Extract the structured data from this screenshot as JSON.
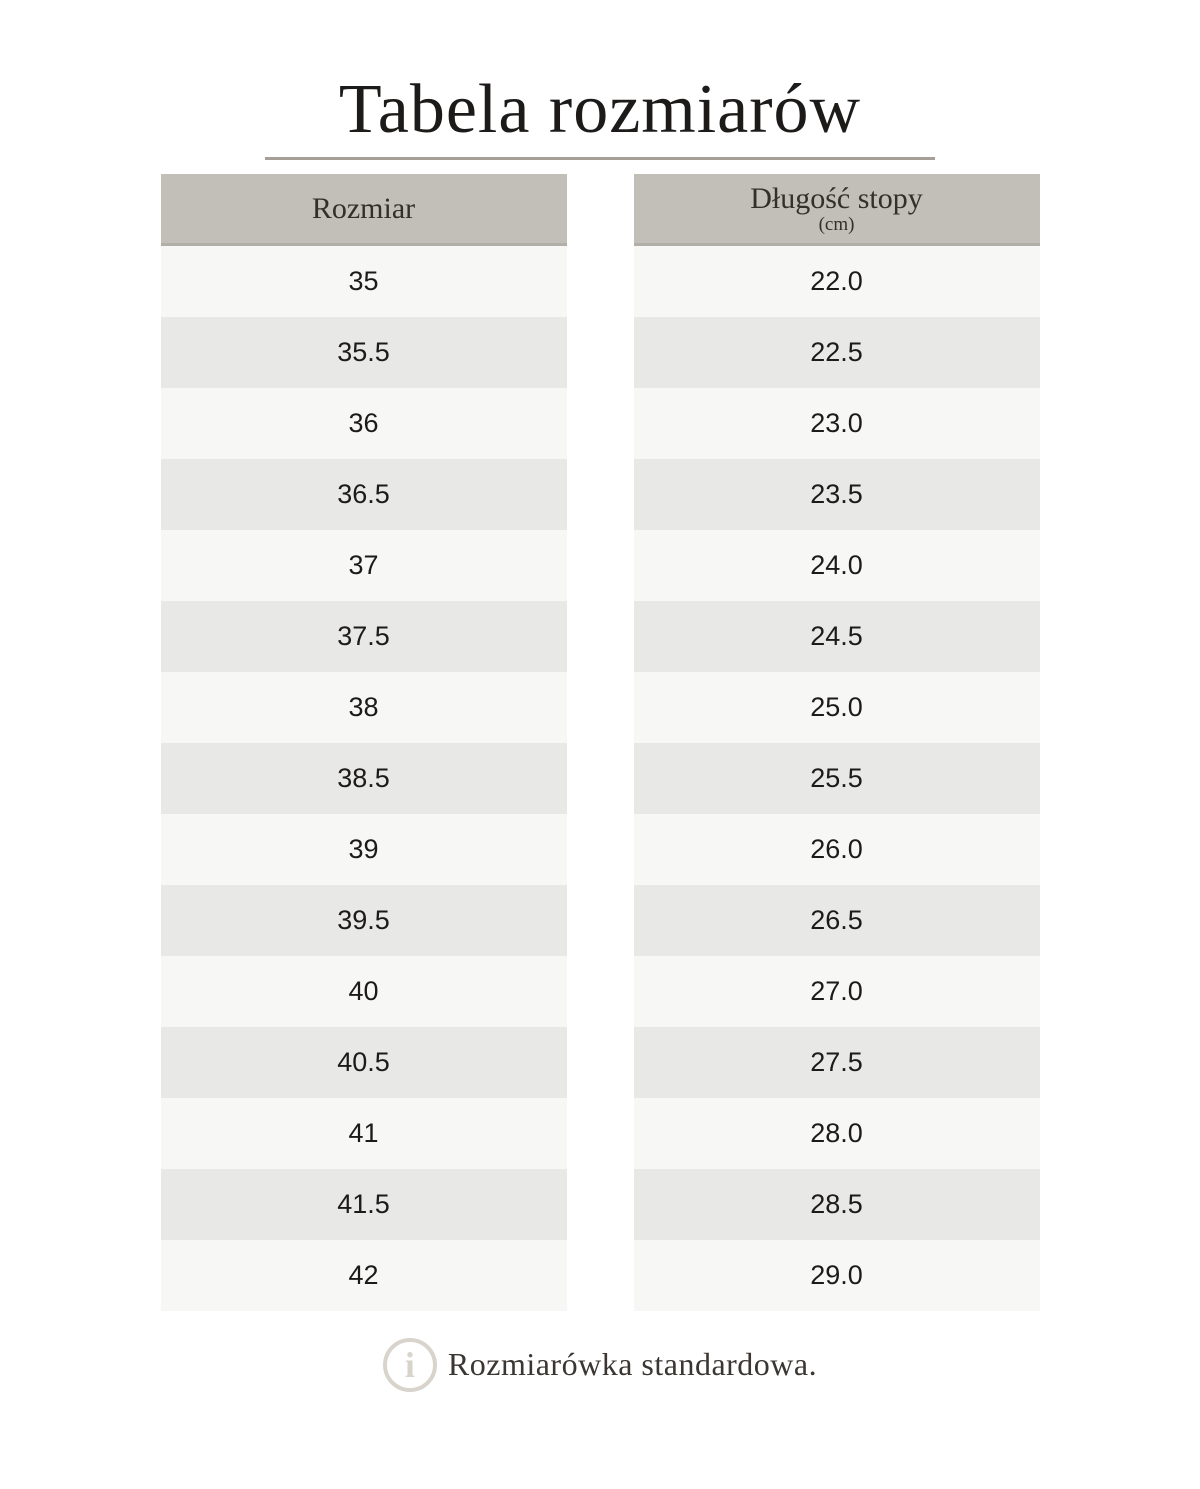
{
  "title": "Tabela rozmiarów",
  "table": {
    "size_header": "Rozmiar",
    "length_header": "Długość stopy",
    "length_unit": "(cm)",
    "rows": [
      {
        "size": "35",
        "length": "22.0"
      },
      {
        "size": "35.5",
        "length": "22.5"
      },
      {
        "size": "36",
        "length": "23.0"
      },
      {
        "size": "36.5",
        "length": "23.5"
      },
      {
        "size": "37",
        "length": "24.0"
      },
      {
        "size": "37.5",
        "length": "24.5"
      },
      {
        "size": "38",
        "length": "25.0"
      },
      {
        "size": "38.5",
        "length": "25.5"
      },
      {
        "size": "39",
        "length": "26.0"
      },
      {
        "size": "39.5",
        "length": "26.5"
      },
      {
        "size": "40",
        "length": "27.0"
      },
      {
        "size": "40.5",
        "length": "27.5"
      },
      {
        "size": "41",
        "length": "28.0"
      },
      {
        "size": "41.5",
        "length": "28.5"
      },
      {
        "size": "42",
        "length": "29.0"
      }
    ]
  },
  "footer": {
    "icon_glyph": "i",
    "note": "Rozmiarówka standardowa."
  },
  "colors": {
    "header_bg": "#c2beb8",
    "header_border": "#b2aea8",
    "row_light": "#f7f7f6",
    "row_dark": "#e8e8e6",
    "title_underline": "#a59f97",
    "footer_icon": "#d8d4cc",
    "text_dark": "#1d1b19",
    "header_text": "#33302b",
    "footer_text": "#3b3631"
  }
}
